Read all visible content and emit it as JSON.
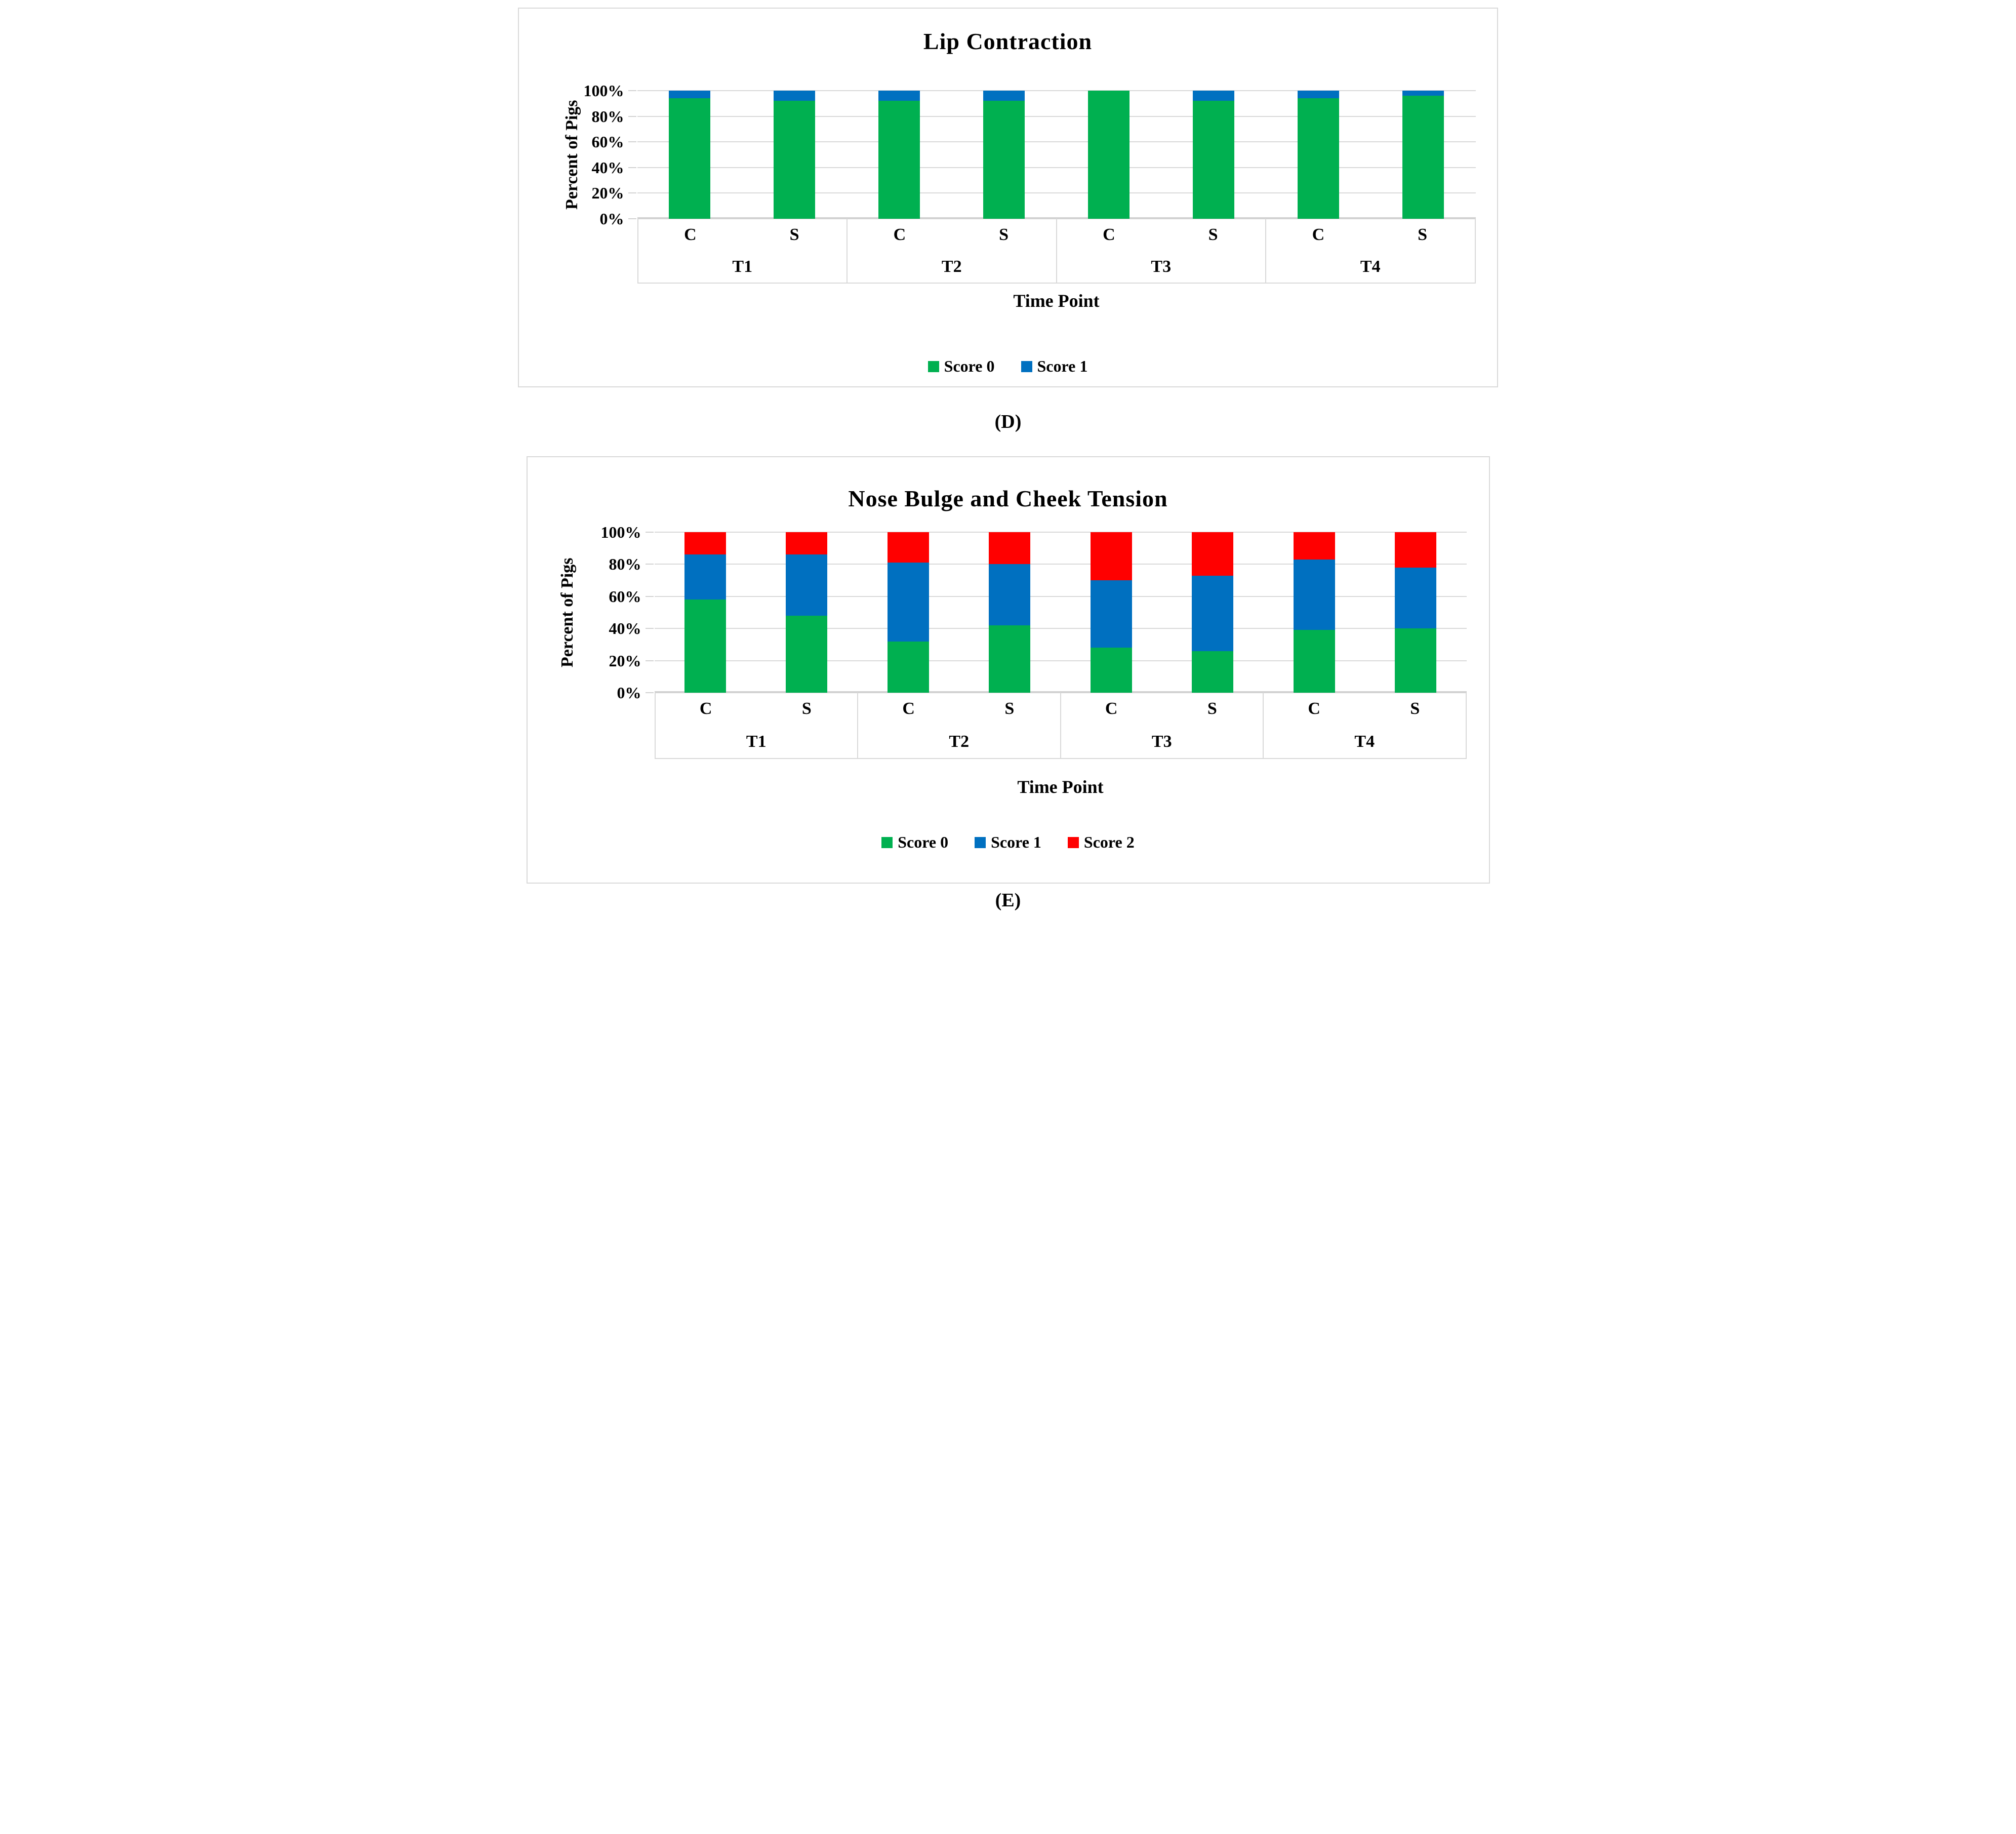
{
  "captions": {
    "d": "(D)",
    "e": "(E)"
  },
  "colors": {
    "score0": "#00B050",
    "score1": "#0070C0",
    "score2": "#FF0000",
    "gridline": "#D9D9D9",
    "axis_line": "#D2D2D2",
    "panel_border": "#D9D9D9"
  },
  "chart_data": [
    {
      "type": "bar",
      "stacked": true,
      "title": "Lip Contraction",
      "xlabel": "Time Point",
      "ylabel": "Percent of Pigs",
      "ylim": [
        0,
        100
      ],
      "grid": true,
      "legend_position": "bottom",
      "y_tick_labels": [
        "100%",
        "80%",
        "60%",
        "40%",
        "20%",
        "0%"
      ],
      "groups": [
        "T1",
        "T2",
        "T3",
        "T4"
      ],
      "bar_labels": [
        "C",
        "S"
      ],
      "categories": [
        "T1-C",
        "T1-S",
        "T2-C",
        "T2-S",
        "T3-C",
        "T3-S",
        "T4-C",
        "T4-S"
      ],
      "series": [
        {
          "name": "Score 0",
          "color": "#00B050",
          "values": [
            94,
            92,
            92,
            92,
            100,
            92,
            94,
            96
          ]
        },
        {
          "name": "Score 1",
          "color": "#0070C0",
          "values": [
            6,
            8,
            8,
            8,
            0,
            8,
            6,
            4
          ]
        }
      ]
    },
    {
      "type": "bar",
      "stacked": true,
      "title": "Nose Bulge and Cheek Tension",
      "xlabel": "Time Point",
      "ylabel": "Percent of Pigs",
      "ylim": [
        0,
        100
      ],
      "grid": true,
      "legend_position": "bottom",
      "y_tick_labels": [
        "100%",
        "80%",
        "60%",
        "40%",
        "20%",
        "0%"
      ],
      "groups": [
        "T1",
        "T2",
        "T3",
        "T4"
      ],
      "bar_labels": [
        "C",
        "S"
      ],
      "categories": [
        "T1-C",
        "T1-S",
        "T2-C",
        "T2-S",
        "T3-C",
        "T3-S",
        "T4-C",
        "T4-S"
      ],
      "series": [
        {
          "name": "Score 0",
          "color": "#00B050",
          "values": [
            58,
            48,
            32,
            42,
            28,
            26,
            39,
            40
          ]
        },
        {
          "name": "Score 1",
          "color": "#0070C0",
          "values": [
            28,
            38,
            49,
            38,
            42,
            47,
            44,
            38
          ]
        },
        {
          "name": "Score 2",
          "color": "#FF0000",
          "values": [
            14,
            14,
            19,
            20,
            30,
            27,
            17,
            22
          ]
        }
      ]
    }
  ]
}
